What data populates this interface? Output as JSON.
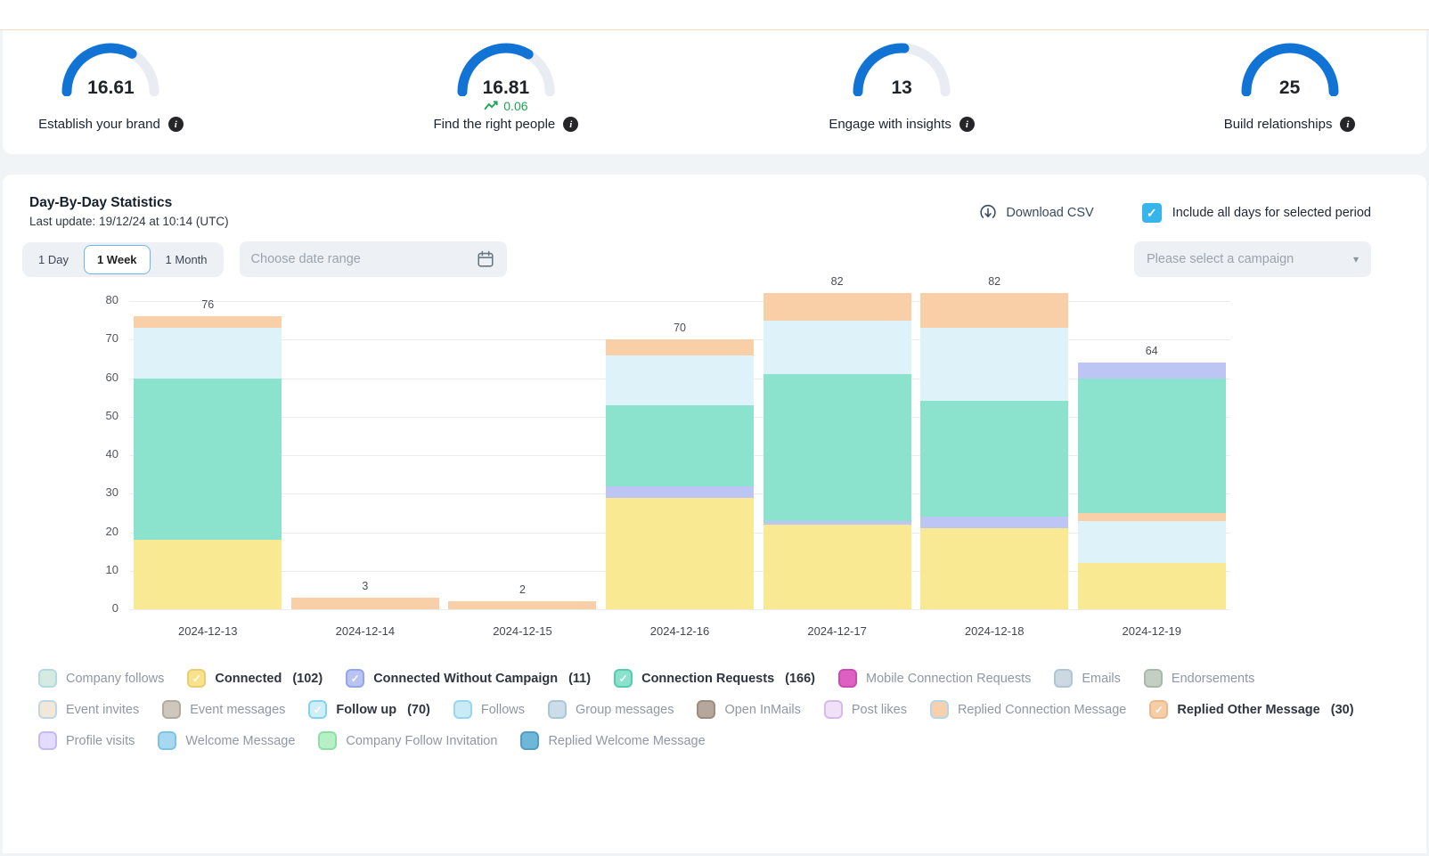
{
  "colors": {
    "gauge_arc": "#1173d4",
    "gauge_track": "#e9edf3",
    "accent_checkbox": "#35b5ea",
    "active_button_border": "#6fb5e9",
    "top_divider": "#f4dac8",
    "delta_green": "#1ea254",
    "grid_line": "#ececec"
  },
  "gauges": [
    {
      "value": "16.61",
      "pct": 66.4,
      "label": "Establish your brand",
      "delta": null
    },
    {
      "value": "16.81",
      "pct": 67.2,
      "label": "Find the right people",
      "delta": "0.06"
    },
    {
      "value": "13",
      "pct": 52,
      "label": "Engage with insights",
      "delta": null
    },
    {
      "value": "25",
      "pct": 100,
      "label": "Build relationships",
      "delta": null
    }
  ],
  "stats": {
    "title": "Day-By-Day Statistics",
    "last_update": "Last update: 19/12/24 at 10:14 (UTC)",
    "download_csv": "Download CSV",
    "include_all_days": "Include all days for selected period",
    "period_buttons": [
      {
        "label": "1 Day",
        "active": false
      },
      {
        "label": "1 Week",
        "active": true
      },
      {
        "label": "1 Month",
        "active": false
      }
    ],
    "date_range_placeholder": "Choose date range",
    "campaign_placeholder": "Please select a campaign"
  },
  "chart_data": {
    "type": "bar",
    "stacked": true,
    "categories": [
      "2024-12-13",
      "2024-12-14",
      "2024-12-15",
      "2024-12-16",
      "2024-12-17",
      "2024-12-18",
      "2024-12-19"
    ],
    "series": [
      {
        "name": "Connected",
        "color": "#f9e992",
        "values": [
          18,
          0,
          0,
          29,
          22,
          21,
          12
        ]
      },
      {
        "name": "Connected Without Campaign",
        "color": "#bcc5f3",
        "values": [
          0,
          0,
          0,
          3,
          1,
          3,
          4
        ]
      },
      {
        "name": "Connection Requests",
        "color": "#8ce3cd",
        "values": [
          42,
          0,
          0,
          21,
          38,
          30,
          35
        ]
      },
      {
        "name": "Follow up",
        "color": "#def2f9",
        "values": [
          13,
          0,
          0,
          13,
          14,
          19,
          11
        ]
      },
      {
        "name": "Replied Other Message",
        "color": "#f8cfa7",
        "values": [
          3,
          3,
          2,
          4,
          7,
          9,
          2
        ]
      }
    ],
    "stack_orders": [
      [
        0,
        1,
        2,
        3,
        4
      ],
      [
        0,
        1,
        2,
        3,
        4
      ],
      [
        0,
        1,
        2,
        3,
        4
      ],
      [
        0,
        1,
        2,
        3,
        4
      ],
      [
        0,
        1,
        2,
        3,
        4
      ],
      [
        0,
        1,
        2,
        3,
        4
      ],
      [
        0,
        3,
        4,
        2,
        1
      ]
    ],
    "totals": [
      76,
      3,
      2,
      70,
      82,
      82,
      64
    ],
    "title": "",
    "xlabel": "",
    "ylabel": "",
    "ylim": [
      0,
      80
    ],
    "yticks": [
      0,
      10,
      20,
      30,
      40,
      50,
      60,
      70,
      80
    ],
    "grid": true,
    "legend_position": "bottom"
  },
  "legend_rows": [
    [
      {
        "label": "Company follows",
        "count": null,
        "fill": "#d5ebdf",
        "border": "#b2d9e6",
        "checked": false
      },
      {
        "label": "Connected",
        "count": "(102)",
        "fill": "#f8e38c",
        "border": "#e7ce72",
        "checked": true
      },
      {
        "label": "Connected Without Campaign",
        "count": "(11)",
        "fill": "#bac4f2",
        "border": "#93a5ec",
        "checked": true
      },
      {
        "label": "Connection Requests",
        "count": "(166)",
        "fill": "#8ae1cc",
        "border": "#55ccad",
        "checked": true
      },
      {
        "label": "Mobile Connection Requests",
        "count": null,
        "fill": "#dd60c2",
        "border": "#c94bae",
        "checked": false
      },
      {
        "label": "Emails",
        "count": null,
        "fill": "#ccd8e2",
        "border": "#afc6d4",
        "checked": false
      },
      {
        "label": "Endorsements",
        "count": null,
        "fill": "#c4cfc3",
        "border": "#a8b9a9",
        "checked": false
      }
    ],
    [
      {
        "label": "Event invites",
        "count": null,
        "fill": "#f3e7da",
        "border": "#bcd8e6",
        "checked": false
      },
      {
        "label": "Event messages",
        "count": null,
        "fill": "#cec8bc",
        "border": "#b2aa9a",
        "checked": false
      },
      {
        "label": "Follow up",
        "count": "(70)",
        "fill": "#cfeef8",
        "border": "#82d4ec",
        "checked": true
      },
      {
        "label": "Follows",
        "count": null,
        "fill": "#c8ebf7",
        "border": "#96d7ec",
        "checked": false
      },
      {
        "label": "Group messages",
        "count": null,
        "fill": "#cbdde8",
        "border": "#a8c8da",
        "checked": false
      },
      {
        "label": "Open InMails",
        "count": null,
        "fill": "#b5a79c",
        "border": "#9c8d81",
        "checked": false
      },
      {
        "label": "Post likes",
        "count": null,
        "fill": "#f0e0f8",
        "border": "#d6bbe9",
        "checked": false
      },
      {
        "label": "Replied Connection Message",
        "count": null,
        "fill": "#f8d0ae",
        "border": "#b4d7e6",
        "checked": false
      },
      {
        "label": "Replied Other Message",
        "count": "(30)",
        "fill": "#f7cda6",
        "border": "#ecba8e",
        "checked": true
      }
    ],
    [
      {
        "label": "Profile visits",
        "count": null,
        "fill": "#e3ddfb",
        "border": "#c5baf1",
        "checked": false
      },
      {
        "label": "Welcome Message",
        "count": null,
        "fill": "#a8d8f0",
        "border": "#7fc2e5",
        "checked": false
      },
      {
        "label": "Company Follow Invitation",
        "count": null,
        "fill": "#b6f0c7",
        "border": "#8ce0a1",
        "checked": false
      },
      {
        "label": "Replied Welcome Message",
        "count": null,
        "fill": "#6eb7d9",
        "border": "#539dc5",
        "checked": false
      }
    ]
  ]
}
